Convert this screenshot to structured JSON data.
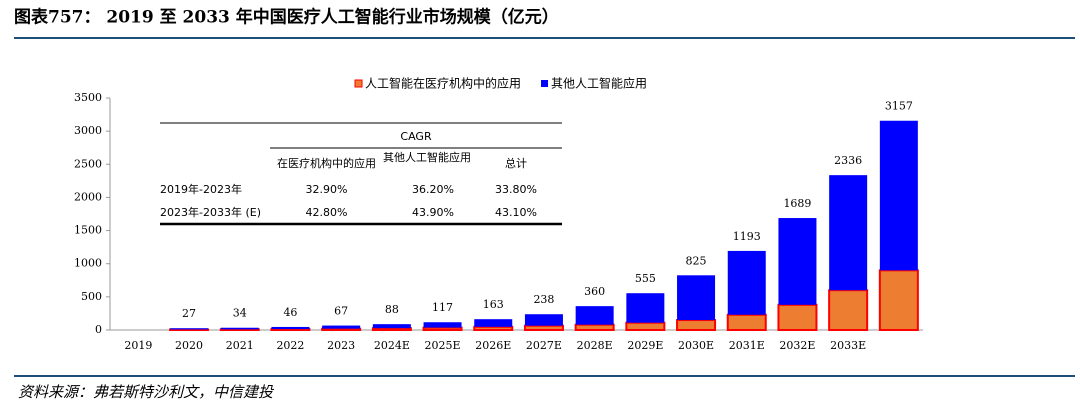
{
  "chart_data": {
    "type": "stacked_bar",
    "title": "图表757：  2019 至 2033 年中国医疗人工智能行业市场规模（亿元）",
    "source": "资料来源：弗若斯特沙利文，中信建投",
    "categories": [
      "2019",
      "2020",
      "2021",
      "2022",
      "2023",
      "2024E",
      "2025E",
      "2026E",
      "2027E",
      "2028E",
      "2029E",
      "2030E",
      "2031E",
      "2032E",
      "2033E",
      null
    ],
    "series": [
      {
        "name": "人工智能在医疗机构中的应用",
        "color": "#ed7d31",
        "edge": "#ff0000",
        "values": [
          null,
          8,
          10,
          14,
          20,
          28,
          36,
          48,
          65,
          80,
          110,
          150,
          230,
          380,
          600,
          900
        ]
      },
      {
        "name": "其他人工智能应用",
        "color": "#0000ff",
        "values": [
          null,
          19,
          24,
          32,
          47,
          60,
          81,
          115,
          173,
          280,
          445,
          675,
          963,
          1309,
          1736,
          2257
        ]
      }
    ],
    "totals": [
      null,
      27,
      34,
      46,
      67,
      88,
      117,
      163,
      238,
      360,
      555,
      825,
      1193,
      1689,
      2336,
      3157
    ],
    "ylim": [
      0,
      3500
    ],
    "yticks": [
      0,
      500,
      1000,
      1500,
      2000,
      2500,
      3000,
      3500
    ],
    "legend": "top",
    "table": {
      "group_header": "CAGR",
      "columns": [
        "在医疗机构中的应用",
        "其他人工智能应用",
        "总计"
      ],
      "rows": [
        [
          "2019年-2023年",
          "32.90%",
          "36.20%",
          "33.80%"
        ],
        [
          "2023年-2033年 (E)",
          "42.80%",
          "43.90%",
          "43.10%"
        ]
      ]
    }
  }
}
